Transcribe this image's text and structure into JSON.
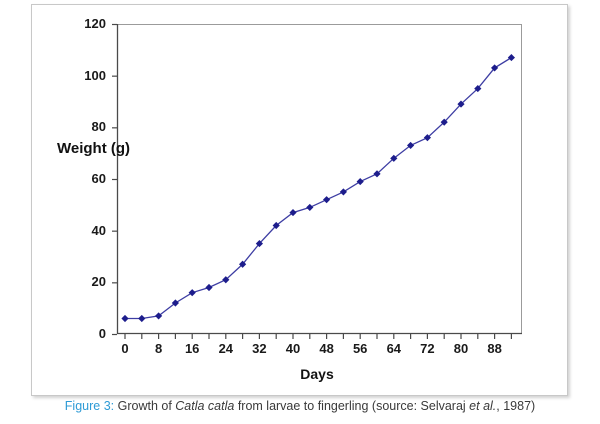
{
  "chart_data": {
    "type": "line",
    "title": "",
    "xlabel": "Days",
    "ylabel": "Weight (g)",
    "x": [
      0,
      4,
      8,
      12,
      16,
      20,
      24,
      28,
      32,
      36,
      40,
      44,
      48,
      52,
      56,
      60,
      64,
      68,
      72,
      76,
      80,
      84,
      88,
      92
    ],
    "series": [
      {
        "name": "Weight (g)",
        "values": [
          6,
          6,
          7,
          12,
          16,
          18,
          21,
          27,
          35,
          42,
          47,
          49,
          52,
          55,
          59,
          62,
          68,
          73,
          76,
          82,
          89,
          95,
          103,
          107
        ]
      }
    ],
    "xlim": [
      0,
      94
    ],
    "ylim": [
      0,
      120
    ],
    "xticks_labeled": [
      0,
      8,
      16,
      24,
      32,
      40,
      48,
      56,
      64,
      72,
      80,
      88
    ],
    "xtick_minor_step": 4,
    "yticks": [
      0,
      20,
      40,
      60,
      80,
      100,
      120
    ],
    "grid": false,
    "legend": "none",
    "marker": "diamond",
    "colors": {
      "line": "#3D3DA3",
      "marker": "#1D1D8C",
      "axis": "#4a4a4a",
      "frame": "#9b9b9b",
      "tick_label": "#1a1a1a"
    }
  },
  "caption": {
    "parts": [
      {
        "text": "Figure 3:",
        "style": "label"
      },
      {
        "text": " Growth of ",
        "style": "normal"
      },
      {
        "text": "Catla catla",
        "style": "italic"
      },
      {
        "text": " from larvae to fingerling (source: Selvaraj ",
        "style": "normal"
      },
      {
        "text": "et al.",
        "style": "italic"
      },
      {
        "text": ", 1987)",
        "style": "normal"
      }
    ],
    "label_color": "#2E9BD6",
    "text_color": "#3a3a3a"
  }
}
